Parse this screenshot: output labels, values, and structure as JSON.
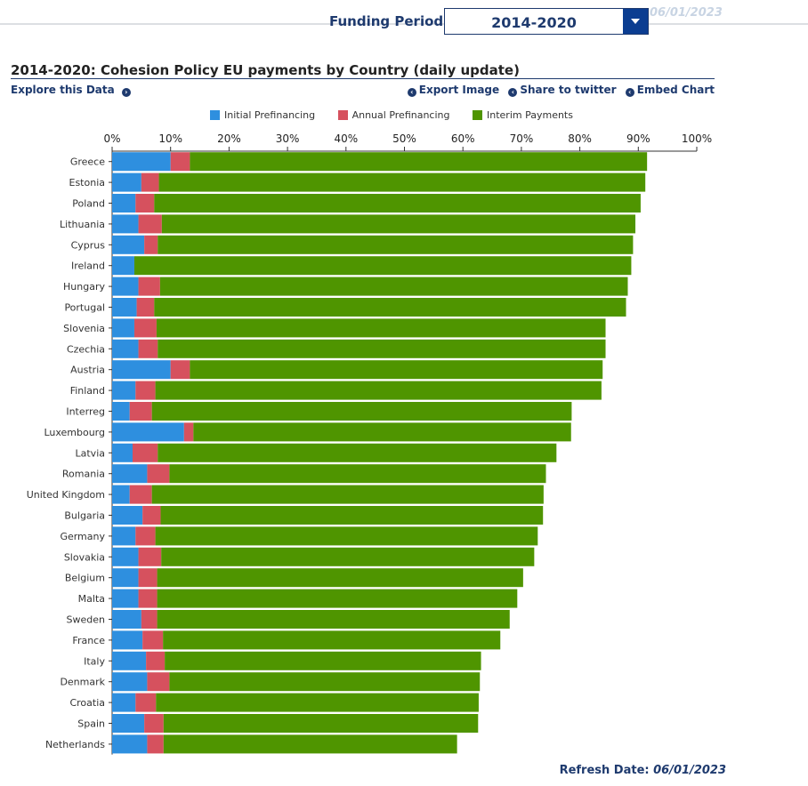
{
  "header": {
    "period_label": "Funding Period",
    "period_value": "2014-2020",
    "faded_date": "06/01/2023"
  },
  "chart_title": "2014-2020: Cohesion Policy EU payments by Country (daily update)",
  "links": {
    "explore": "Explore this Data",
    "export": "Export Image",
    "share": "Share to twitter",
    "embed": "Embed Chart"
  },
  "footer": {
    "refresh_label": "Refresh Date:",
    "refresh_date": "06/01/2023"
  },
  "colors": {
    "initial": "#2e8fdf",
    "annual": "#d6515e",
    "interim": "#4f9500",
    "text": "#1e3a6e"
  },
  "chart_data": {
    "type": "bar",
    "orientation": "horizontal",
    "stacked": true,
    "title": "2014-2020: Cohesion Policy EU payments by Country (daily update)",
    "xlabel": "",
    "ylabel": "",
    "xlim": [
      0,
      100
    ],
    "x_ticks": [
      "0%",
      "10%",
      "20%",
      "30%",
      "40%",
      "50%",
      "60%",
      "70%",
      "80%",
      "90%",
      "100%"
    ],
    "legend_position": "top",
    "categories": [
      "Greece",
      "Estonia",
      "Poland",
      "Lithuania",
      "Cyprus",
      "Ireland",
      "Hungary",
      "Portugal",
      "Slovenia",
      "Czechia",
      "Austria",
      "Finland",
      "Interreg",
      "Luxembourg",
      "Latvia",
      "Romania",
      "United Kingdom",
      "Bulgaria",
      "Germany",
      "Slovakia",
      "Belgium",
      "Malta",
      "Sweden",
      "France",
      "Italy",
      "Denmark",
      "Croatia",
      "Spain",
      "Netherlands"
    ],
    "series": [
      {
        "name": "Initial Prefinancing",
        "color": "#2e8fdf",
        "values": [
          10,
          5,
          4,
          4.5,
          5.5,
          3.8,
          4.5,
          4.2,
          3.8,
          4.5,
          10,
          4,
          3,
          12.3,
          3.5,
          6,
          3,
          5.2,
          4,
          4.5,
          4.5,
          4.5,
          5,
          5.2,
          5.8,
          6,
          4,
          5.5,
          6
        ]
      },
      {
        "name": "Annual Prefinancing",
        "color": "#d6515e",
        "values": [
          3.3,
          3,
          3.2,
          4,
          2.3,
          0,
          3.7,
          3,
          3.8,
          3.3,
          3.3,
          3.4,
          3.8,
          1.6,
          4.3,
          3.8,
          3.8,
          3.1,
          3.4,
          3.9,
          3.2,
          3.2,
          2.7,
          3.5,
          3.2,
          3.8,
          3.5,
          3.3,
          2.8
        ]
      },
      {
        "name": "Interim Payments",
        "color": "#4f9500",
        "values": [
          78.2,
          83.2,
          83.2,
          81,
          81.3,
          85,
          80,
          80.7,
          76.8,
          76.6,
          70.6,
          76.3,
          71.8,
          64.6,
          68.2,
          64.4,
          67,
          65.4,
          65.4,
          63.8,
          62.6,
          61.6,
          60.3,
          57.7,
          54.1,
          53.1,
          55.2,
          53.8,
          50.2
        ]
      }
    ]
  }
}
